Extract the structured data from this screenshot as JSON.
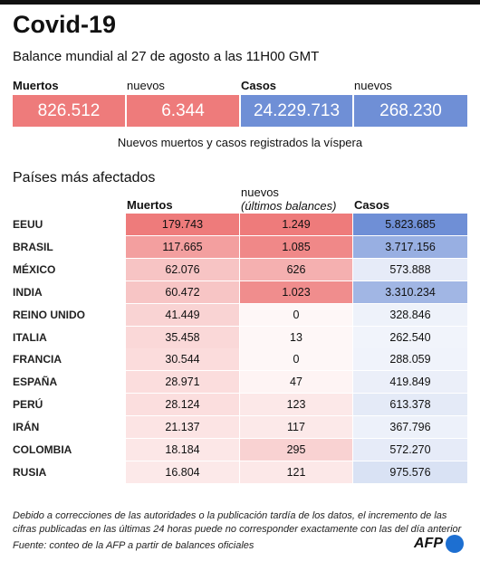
{
  "title": "Covid-19",
  "subtitle": "Balance mundial al 27 de agosto a las 11H00 GMT",
  "summary": {
    "muertos_label": "Muertos",
    "nuevos_label_1": "nuevos",
    "casos_label": "Casos",
    "nuevos_label_2": "nuevos",
    "muertos_value": "826.512",
    "nuevos_muertos_value": "6.344",
    "casos_value": "24.229.713",
    "nuevos_casos_value": "268.230",
    "note": "Nuevos muertos y casos registrados la víspera"
  },
  "colors": {
    "deaths_strong": "#ee7b7b",
    "cases_strong": "#6f8fd6"
  },
  "table": {
    "section_title": "Países más afectados",
    "col_muertos": "Muertos",
    "col_nuevos": "nuevos",
    "col_nuevos_sub": "(últimos balances)",
    "col_casos": "Casos",
    "rows": [
      {
        "country": "EEUU",
        "muertos": "179.743",
        "nuevos": "1.249",
        "casos": "5.823.685"
      },
      {
        "country": "BRASIL",
        "muertos": "117.665",
        "nuevos": "1.085",
        "casos": "3.717.156"
      },
      {
        "country": "MÉXICO",
        "muertos": "62.076",
        "nuevos": "626",
        "casos": "573.888"
      },
      {
        "country": "INDIA",
        "muertos": "60.472",
        "nuevos": "1.023",
        "casos": "3.310.234"
      },
      {
        "country": "REINO UNIDO",
        "muertos": "41.449",
        "nuevos": "0",
        "casos": "328.846"
      },
      {
        "country": "ITALIA",
        "muertos": "35.458",
        "nuevos": "13",
        "casos": "262.540"
      },
      {
        "country": "FRANCIA",
        "muertos": "30.544",
        "nuevos": "0",
        "casos": "288.059"
      },
      {
        "country": "ESPAÑA",
        "muertos": "28.971",
        "nuevos": "47",
        "casos": "419.849"
      },
      {
        "country": "PERÚ",
        "muertos": "28.124",
        "nuevos": "123",
        "casos": "613.378"
      },
      {
        "country": "IRÁN",
        "muertos": "21.137",
        "nuevos": "117",
        "casos": "367.796"
      },
      {
        "country": "COLOMBIA",
        "muertos": "18.184",
        "nuevos": "295",
        "casos": "572.270"
      },
      {
        "country": "RUSIA",
        "muertos": "16.804",
        "nuevos": "121",
        "casos": "975.576"
      }
    ]
  },
  "footnote": "Debido a correcciones de las autoridades o la publicación tardía de los datos, el incremento de las cifras publicadas en las últimas 24 horas puede no corresponder exactamente con las del día anterior",
  "source": "Fuente: conteo de la AFP a partir de balances oficiales",
  "logo_text": "AFP"
}
